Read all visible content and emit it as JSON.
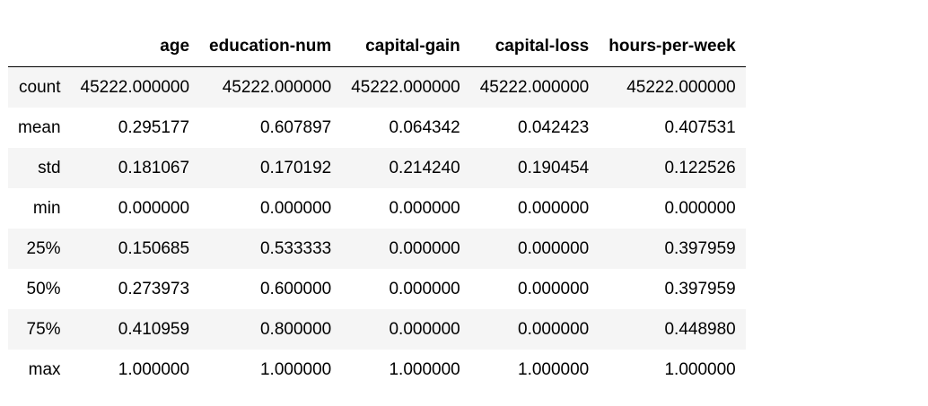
{
  "table": {
    "index_header": "",
    "columns": [
      "age",
      "education-num",
      "capital-gain",
      "capital-loss",
      "hours-per-week"
    ],
    "rows": [
      {
        "label": "count",
        "values": [
          "45222.000000",
          "45222.000000",
          "45222.000000",
          "45222.000000",
          "45222.000000"
        ]
      },
      {
        "label": "mean",
        "values": [
          "0.295177",
          "0.607897",
          "0.064342",
          "0.042423",
          "0.407531"
        ]
      },
      {
        "label": "std",
        "values": [
          "0.181067",
          "0.170192",
          "0.214240",
          "0.190454",
          "0.122526"
        ]
      },
      {
        "label": "min",
        "values": [
          "0.000000",
          "0.000000",
          "0.000000",
          "0.000000",
          "0.000000"
        ]
      },
      {
        "label": "25%",
        "values": [
          "0.150685",
          "0.533333",
          "0.000000",
          "0.000000",
          "0.397959"
        ]
      },
      {
        "label": "50%",
        "values": [
          "0.273973",
          "0.600000",
          "0.000000",
          "0.000000",
          "0.397959"
        ]
      },
      {
        "label": "75%",
        "values": [
          "0.410959",
          "0.800000",
          "0.000000",
          "0.000000",
          "0.448980"
        ]
      },
      {
        "label": "max",
        "values": [
          "1.000000",
          "1.000000",
          "1.000000",
          "1.000000",
          "1.000000"
        ]
      }
    ]
  },
  "colors": {
    "stripe": "#f5f5f5",
    "background": "#ffffff",
    "header_rule": "#000000"
  }
}
